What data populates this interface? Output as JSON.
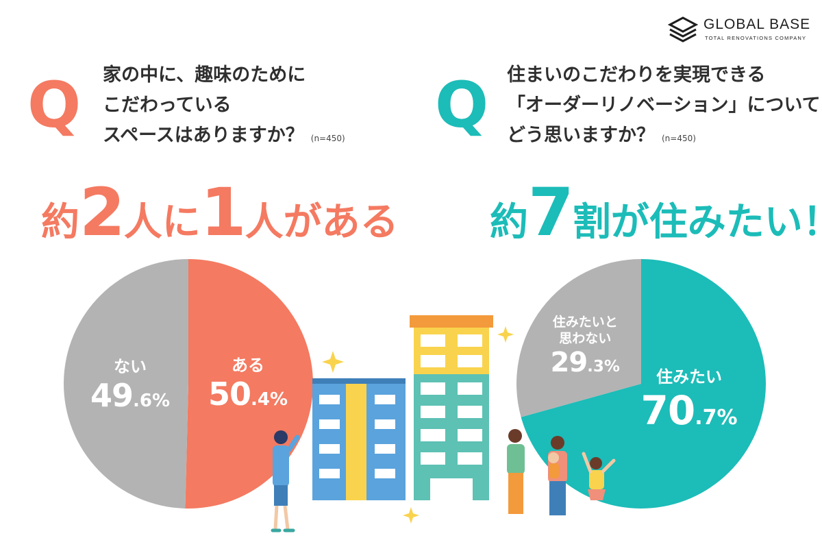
{
  "logo": {
    "name": "GLOBAL BASE",
    "tagline": "TOTAL RENOVATIONS COMPANY"
  },
  "colors": {
    "coral": "#f47a61",
    "teal": "#1cbcb8",
    "gray": "#b3b3b3"
  },
  "left": {
    "q_mark": "Q",
    "question_lines": [
      "家の中に、趣味のために",
      "こだわっている",
      "スペースはありますか？"
    ],
    "n_label": "(n=450)",
    "headline": {
      "p1": "約",
      "p2": "2",
      "p3": "人に",
      "p4": "1",
      "p5": "人がある"
    }
  },
  "right": {
    "q_mark": "Q",
    "question_lines": [
      "住まいのこだわりを実現できる",
      "「オーダーリノベーション」について",
      "どう思いますか？"
    ],
    "n_label": "(n=450)",
    "headline": {
      "p1": "約",
      "p2": "7",
      "p3": "割が住みたい！"
    }
  },
  "chart_data": [
    {
      "type": "pie",
      "title": "家の中に、趣味のためにこだわっているスペースはありますか？",
      "slices": [
        {
          "label": "ある",
          "value": 50.4,
          "int_text": "50",
          "dec_text": ".4%",
          "color": "#f47a61"
        },
        {
          "label": "ない",
          "value": 49.6,
          "int_text": "49",
          "dec_text": ".6%",
          "color": "#b3b3b3"
        }
      ],
      "start": "12 o'clock",
      "direction": "clockwise"
    },
    {
      "type": "pie",
      "title": "住まいのこだわりを実現できる「オーダーリノベーション」についてどう思いますか？",
      "slices": [
        {
          "label": "住みたい",
          "value": 70.7,
          "int_text": "70",
          "dec_text": ".7%",
          "color": "#1cbcb8"
        },
        {
          "label": "住みたいと思わない",
          "label_lines": [
            "住みたいと",
            "思わない"
          ],
          "value": 29.3,
          "int_text": "29",
          "dec_text": ".3%",
          "color": "#b3b3b3"
        }
      ],
      "start": "12 o'clock",
      "direction": "clockwise"
    }
  ]
}
